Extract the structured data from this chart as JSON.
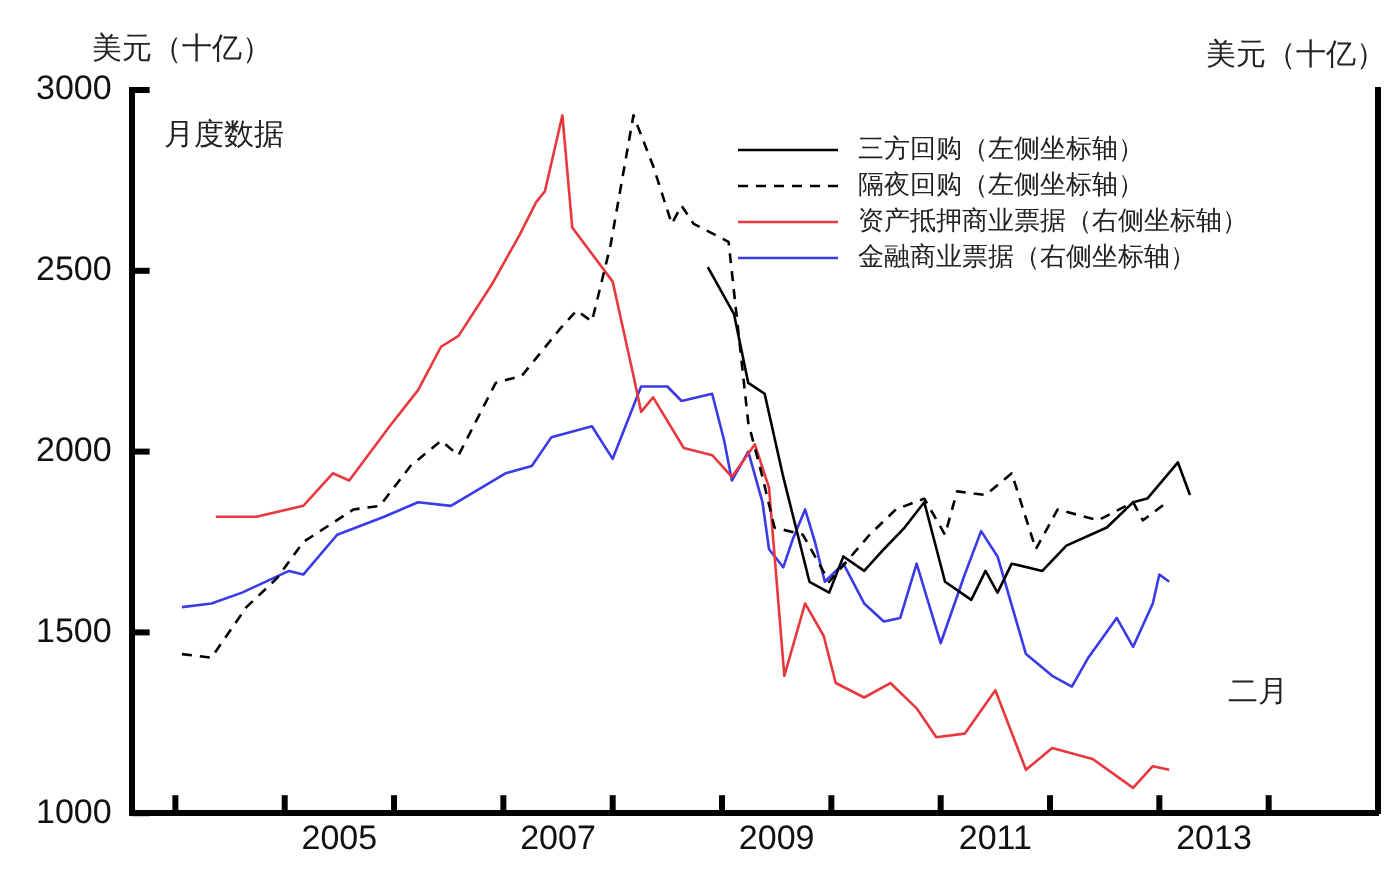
{
  "chart_data": {
    "type": "line",
    "subtitle": "月度数据",
    "ylabel": "美元（十亿）",
    "y2label": "美元（十亿）",
    "xlim": [
      2003.6,
      2015
    ],
    "ylim": [
      1000,
      3000
    ],
    "yticks": [
      1000,
      1500,
      2000,
      2500,
      3000
    ],
    "xticks": [
      {
        "value": 2004,
        "label": null
      },
      {
        "value": 2005,
        "label": null
      },
      {
        "value": 2005.5,
        "label": "2005"
      },
      {
        "value": 2006,
        "label": null
      },
      {
        "value": 2007,
        "label": null
      },
      {
        "value": 2007.5,
        "label": "2007"
      },
      {
        "value": 2008,
        "label": null
      },
      {
        "value": 2009,
        "label": null
      },
      {
        "value": 2009.5,
        "label": "2009"
      },
      {
        "value": 2010,
        "label": null
      },
      {
        "value": 2011,
        "label": null
      },
      {
        "value": 2011.5,
        "label": "2011"
      },
      {
        "value": 2012,
        "label": null
      },
      {
        "value": 2013,
        "label": null
      },
      {
        "value": 2013.5,
        "label": "2013"
      },
      {
        "value": 2014,
        "label": null
      }
    ],
    "grid": false,
    "legend": "top right",
    "marker": "none",
    "annotations": [
      "二月"
    ],
    "series": [
      {
        "name": "三方回购（左侧坐标轴）",
        "color": "#000000",
        "line_style": "solid",
        "x": [
          2008.87,
          2009.11,
          2009.24,
          2009.39,
          2009.56,
          2009.8,
          2009.98,
          2010.11,
          2010.3,
          2010.48,
          2010.67,
          2010.85,
          2011.04,
          2011.28,
          2011.41,
          2011.52,
          2011.65,
          2011.93,
          2012.15,
          2012.52,
          2012.76,
          2012.89,
          2013.17,
          2013.28
        ],
        "values": [
          2510,
          2380,
          2190,
          2160,
          1930,
          1640,
          1610,
          1710,
          1670,
          1730,
          1790,
          1860,
          1640,
          1590,
          1670,
          1610,
          1690,
          1670,
          1740,
          1790,
          1860,
          1870,
          1970,
          1880
        ]
      },
      {
        "name": "隔夜回购（左侧坐标轴）",
        "color": "#000000",
        "line_style": "dashed",
        "x": [
          2004.06,
          2004.33,
          2004.65,
          2004.93,
          2005.17,
          2005.63,
          2005.87,
          2006.15,
          2006.43,
          2006.59,
          2006.93,
          2007.17,
          2007.52,
          2007.67,
          2007.81,
          2007.98,
          2008.19,
          2008.37,
          2008.54,
          2008.63,
          2008.74,
          2009.06,
          2009.24,
          2009.37,
          2009.48,
          2009.74,
          2009.98,
          2010.35,
          2010.59,
          2010.85,
          2011.04,
          2011.15,
          2011.41,
          2011.65,
          2011.87,
          2012.07,
          2012.44,
          2012.76,
          2012.85,
          2013.07
        ],
        "values": [
          1440,
          1430,
          1570,
          1650,
          1750,
          1840,
          1850,
          1960,
          2030,
          1990,
          2190,
          2210,
          2340,
          2390,
          2360,
          2570,
          2930,
          2790,
          2630,
          2680,
          2630,
          2580,
          2080,
          1930,
          1790,
          1770,
          1640,
          1770,
          1840,
          1870,
          1770,
          1890,
          1880,
          1940,
          1730,
          1840,
          1810,
          1860,
          1810,
          1860
        ]
      },
      {
        "name": "资产抵押商业票据（右侧坐标轴）",
        "color": "#e8383d",
        "line_style": "solid",
        "x": [
          2004.37,
          2004.74,
          2005.17,
          2005.44,
          2005.59,
          2005.96,
          2006.22,
          2006.43,
          2006.59,
          2006.89,
          2007.15,
          2007.3,
          2007.38,
          2007.54,
          2007.63,
          2008.0,
          2008.19,
          2008.26,
          2008.37,
          2008.65,
          2008.91,
          2009.09,
          2009.3,
          2009.43,
          2009.57,
          2009.76,
          2009.93,
          2010.04,
          2010.3,
          2010.54,
          2010.78,
          2010.96,
          2011.22,
          2011.5,
          2011.78,
          2012.02,
          2012.39,
          2012.76,
          2012.94,
          2013.09
        ],
        "values": [
          1820,
          1820,
          1850,
          1940,
          1920,
          2070,
          2170,
          2290,
          2320,
          2460,
          2600,
          2690,
          2720,
          2930,
          2620,
          2470,
          2210,
          2110,
          2150,
          2010,
          1990,
          1930,
          2020,
          1900,
          1380,
          1580,
          1490,
          1360,
          1320,
          1360,
          1290,
          1210,
          1220,
          1340,
          1120,
          1180,
          1150,
          1070,
          1130,
          1120
        ]
      },
      {
        "name": "金融商业票据（右侧坐标轴）",
        "color": "#3a3ae8",
        "line_style": "solid",
        "x": [
          2004.06,
          2004.33,
          2004.61,
          2005.04,
          2005.17,
          2005.48,
          2005.91,
          2006.22,
          2006.52,
          2007.02,
          2007.26,
          2007.44,
          2007.81,
          2008.0,
          2008.26,
          2008.5,
          2008.63,
          2008.91,
          2009.02,
          2009.09,
          2009.24,
          2009.37,
          2009.43,
          2009.56,
          2009.65,
          2009.76,
          2009.85,
          2009.94,
          2010.11,
          2010.3,
          2010.48,
          2010.63,
          2010.78,
          2011.0,
          2011.22,
          2011.37,
          2011.52,
          2011.78,
          2012.02,
          2012.2,
          2012.35,
          2012.61,
          2012.76,
          2012.94,
          2013.0,
          2013.09
        ],
        "values": [
          1570,
          1580,
          1610,
          1670,
          1660,
          1770,
          1820,
          1860,
          1850,
          1940,
          1960,
          2040,
          2070,
          1980,
          2180,
          2180,
          2140,
          2160,
          2030,
          1920,
          2000,
          1860,
          1730,
          1680,
          1760,
          1840,
          1750,
          1640,
          1690,
          1580,
          1530,
          1540,
          1690,
          1470,
          1660,
          1780,
          1710,
          1440,
          1380,
          1350,
          1430,
          1540,
          1460,
          1580,
          1660,
          1640
        ]
      }
    ]
  }
}
